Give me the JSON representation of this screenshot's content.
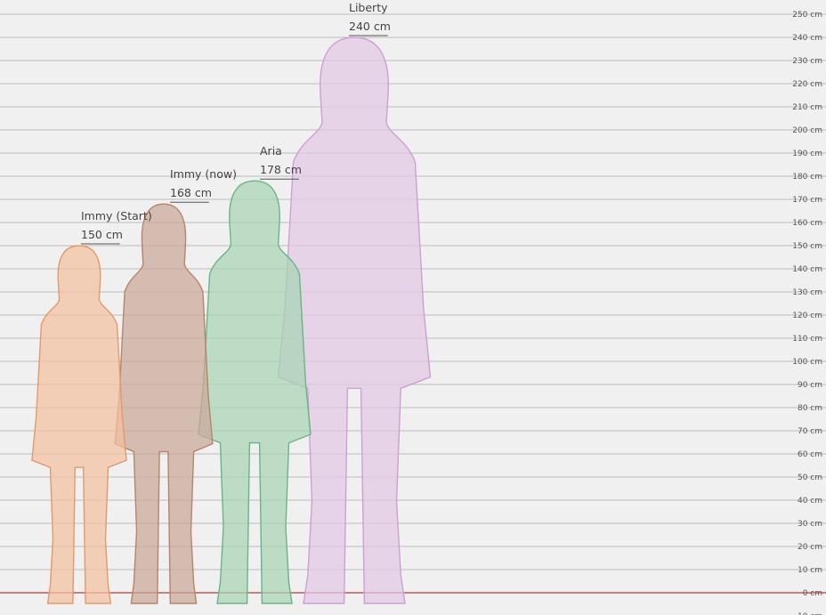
{
  "chart_data": {
    "type": "bar",
    "title": "",
    "xlabel": "",
    "ylabel": "",
    "ylim": [
      -10,
      250
    ],
    "y_tick_step": 10,
    "y_tick_unit": "cm",
    "grid": true,
    "categories": [
      "Immy (Start)",
      "Immy (now)",
      "Aria",
      "Liberty"
    ],
    "values": [
      150,
      168,
      178,
      240
    ],
    "value_labels": [
      "150 cm",
      "168 cm",
      "178 cm",
      "240 cm"
    ],
    "colors": {
      "fills": [
        "#f2c0a0",
        "#c9a898",
        "#a8d4b4",
        "#e2c8e4"
      ],
      "strokes": [
        "#e09a6e",
        "#b8846a",
        "#6bb585",
        "#cca0d2"
      ],
      "baseline": "#b33a3a",
      "grid": "#bdbdbd",
      "background": "#f0f0f0"
    }
  }
}
